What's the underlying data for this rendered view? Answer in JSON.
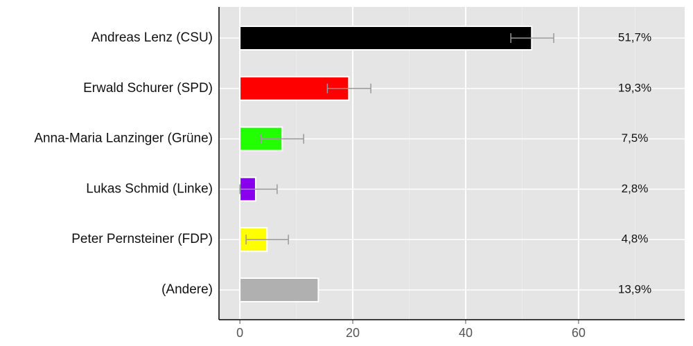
{
  "chart_data": {
    "type": "hbar",
    "categories": [
      "Andreas Lenz (CSU)",
      "Erwald Schurer (SPD)",
      "Anna-Maria Lanzinger (Grüne)",
      "Lukas Schmid (Linke)",
      "Peter Pernsteiner (FDP)",
      "(Andere)"
    ],
    "values": [
      51.7,
      19.3,
      7.5,
      2.8,
      4.8,
      13.9
    ],
    "value_labels": [
      "51,7%",
      "19,3%",
      "7,5%",
      "2,8%",
      "4,8%",
      "13,9%"
    ],
    "colors": [
      "#000000",
      "#ff0000",
      "#22ff00",
      "#8800ee",
      "#ffff00",
      "#b0b0b0"
    ],
    "errors": [
      [
        3.7,
        3.9
      ],
      [
        3.8,
        3.9
      ],
      [
        3.8,
        3.8
      ],
      [
        2.8,
        3.8
      ],
      [
        3.7,
        3.8
      ],
      null
    ],
    "xlim": [
      -3.7,
      78.8
    ],
    "xticks": [
      0,
      20,
      40,
      60
    ],
    "grid": true
  }
}
